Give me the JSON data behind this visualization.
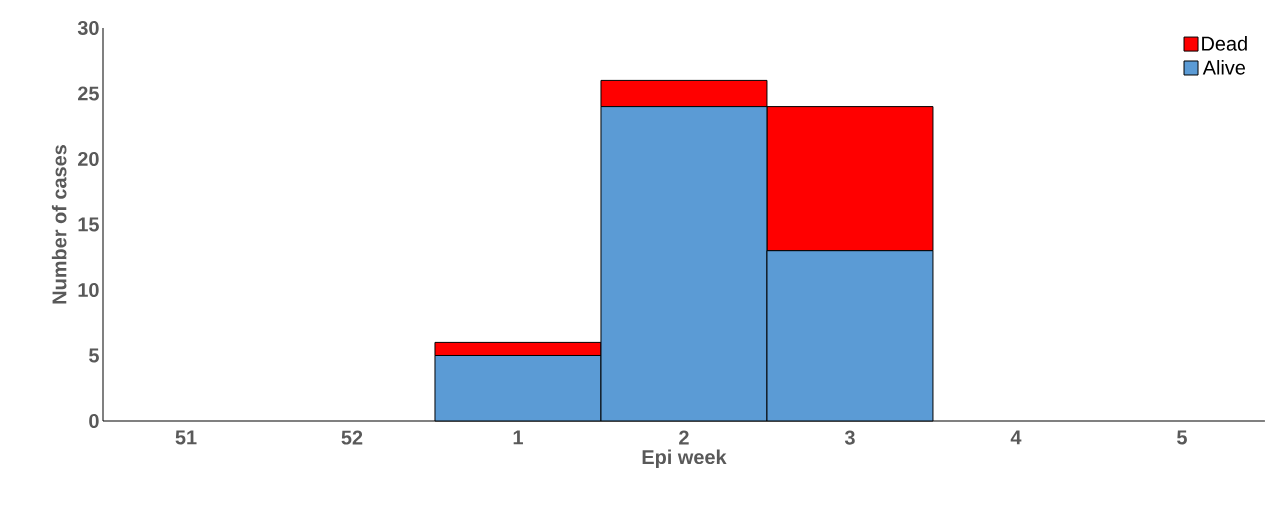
{
  "chart_data": {
    "type": "bar",
    "stacked": true,
    "xlabel": "Epi week",
    "ylabel": "Number of cases",
    "categories": [
      "51",
      "52",
      "1",
      "2",
      "3",
      "4",
      "5"
    ],
    "series": [
      {
        "name": "Alive",
        "color": "#5b9bd5",
        "values": [
          0,
          0,
          5,
          24,
          13,
          0,
          0
        ]
      },
      {
        "name": "Dead",
        "color": "#ff0000",
        "values": [
          0,
          0,
          1,
          2,
          11,
          0,
          0
        ]
      }
    ],
    "ylim": [
      0,
      30
    ],
    "yticks": [
      0,
      5,
      10,
      15,
      20,
      25,
      30
    ],
    "grid": false,
    "legend": "top right"
  }
}
